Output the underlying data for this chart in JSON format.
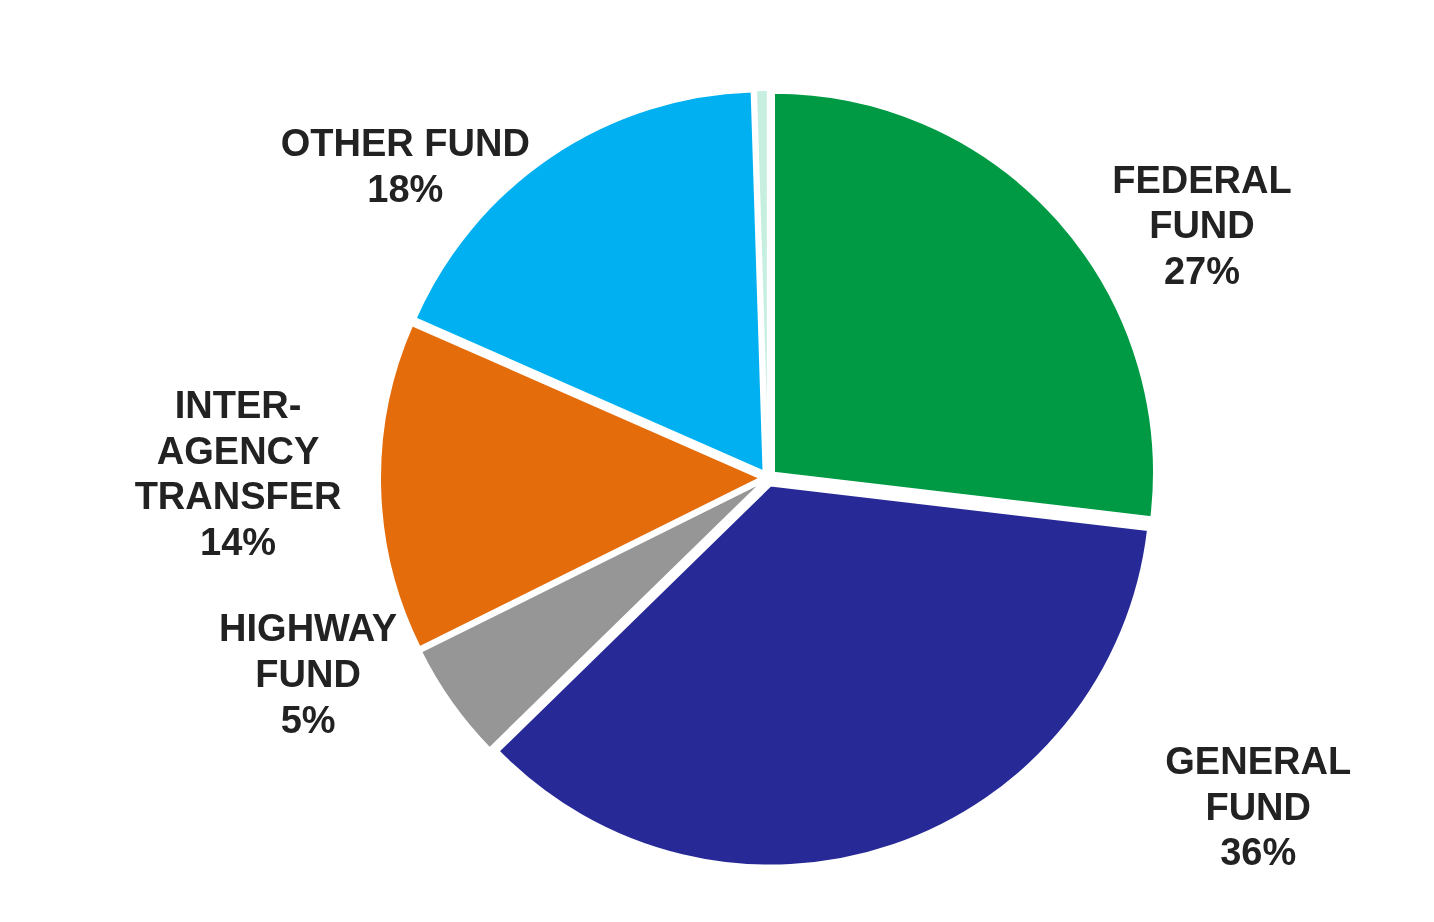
{
  "chart_data": {
    "type": "pie",
    "categories": [
      "FEDERAL FUND",
      "GENERAL FUND",
      "HIGHWAY FUND",
      "INTER-AGENCY TRANSFER",
      "OTHER FUND",
      null
    ],
    "values": [
      27,
      36,
      5,
      14,
      18,
      0.5
    ],
    "value_labels": [
      "27%",
      "36%",
      "5%",
      "14%",
      "18%",
      null
    ],
    "colors": [
      "#009a44",
      "#262996",
      "#969696",
      "#e46c0a",
      "#00b0f0",
      "#c6efe0"
    ]
  }
}
